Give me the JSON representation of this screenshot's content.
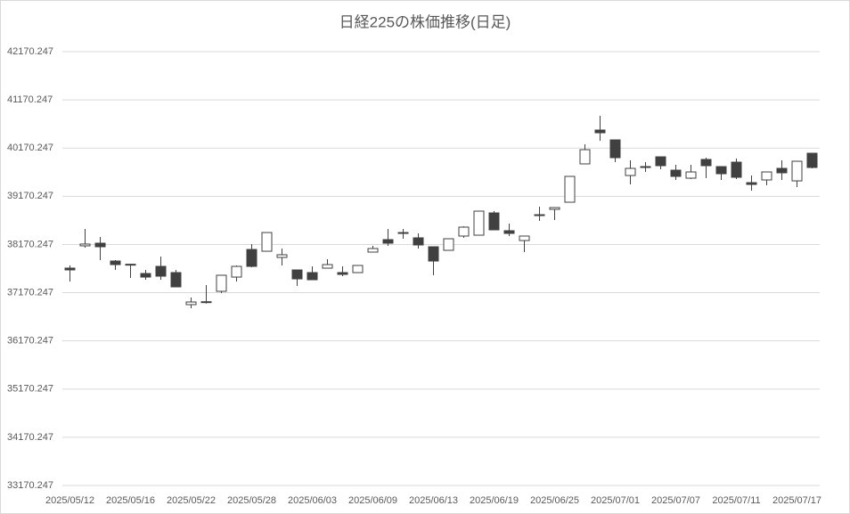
{
  "chart_data": {
    "type": "candlestick",
    "title": "日経225の株価推移(日足)",
    "categories": [
      "2025/05/12",
      null,
      null,
      null,
      "2025/05/16",
      null,
      null,
      null,
      "2025/05/22",
      null,
      null,
      null,
      "2025/05/28",
      null,
      null,
      null,
      "2025/06/03",
      null,
      null,
      null,
      "2025/06/09",
      null,
      null,
      null,
      "2025/06/13",
      null,
      null,
      null,
      "2025/06/19",
      null,
      null,
      null,
      "2025/06/25",
      null,
      null,
      null,
      "2025/07/01",
      null,
      null,
      null,
      "2025/07/07",
      null,
      null,
      null,
      "2025/07/11",
      null,
      null,
      null,
      "2025/07/17",
      null
    ],
    "open": [
      37680,
      38142,
      38197,
      37827,
      37760,
      37568,
      37716,
      37587,
      36922,
      36965,
      37199,
      37494,
      38067,
      38030,
      37901,
      37642,
      37587,
      37679,
      37587,
      37587,
      38012,
      38271,
      38418,
      38308,
      38123,
      38049,
      38345,
      38363,
      38825,
      38456,
      38252,
      38770,
      38899,
      39047,
      39842,
      40544,
      40340,
      39601,
      39768,
      39989,
      39712,
      39546,
      39934,
      39786,
      39878,
      39453,
      39509,
      39749,
      39490,
      40063
    ],
    "high": [
      37735,
      38493,
      38326,
      37846,
      37770,
      37642,
      37920,
      37642,
      37069,
      37328,
      37532,
      37735,
      38178,
      38418,
      38086,
      37642,
      37716,
      37864,
      37716,
      37735,
      38141,
      38493,
      38493,
      38400,
      38123,
      38289,
      38548,
      38862,
      38862,
      38603,
      38345,
      38954,
      38936,
      39583,
      40248,
      40840,
      40340,
      39915,
      39878,
      39989,
      39823,
      39823,
      39971,
      39786,
      39952,
      39601,
      39675,
      39915,
      39897,
      40063
    ],
    "low": [
      37402,
      38104,
      37846,
      37642,
      37476,
      37439,
      37439,
      37291,
      36848,
      36946,
      37162,
      37402,
      37698,
      38030,
      37735,
      37310,
      37439,
      37679,
      37513,
      37587,
      38012,
      38141,
      38289,
      38086,
      37532,
      38049,
      38308,
      38363,
      38474,
      38345,
      38012,
      38659,
      38677,
      39047,
      39842,
      40322,
      39878,
      39416,
      39675,
      39731,
      39509,
      39527,
      39546,
      39509,
      39527,
      39287,
      39398,
      39509,
      39361,
      39749
    ],
    "close": [
      37643,
      38179,
      38123,
      37753,
      37750,
      37494,
      37513,
      37291,
      36977,
      36983,
      37532,
      37716,
      37716,
      38418,
      37957,
      37457,
      37439,
      37753,
      37550,
      37735,
      38086,
      38197,
      38400,
      38160,
      37827,
      38289,
      38530,
      38862,
      38474,
      38400,
      38345,
      38788,
      38936,
      39583,
      40137,
      40488,
      39971,
      39749,
      39786,
      39805,
      39583,
      39675,
      39805,
      39638,
      39564,
      39416,
      39675,
      39657,
      39897,
      39768
    ],
    "up_color": "#ffffff",
    "down_color": "#404040",
    "ylim": [
      33170.247,
      42170.247
    ],
    "yticks": [
      33170.247,
      34170.247,
      35170.247,
      36170.247,
      37170.247,
      38170.247,
      39170.247,
      40170.247,
      41170.247,
      42170.247
    ],
    "grid": true
  }
}
